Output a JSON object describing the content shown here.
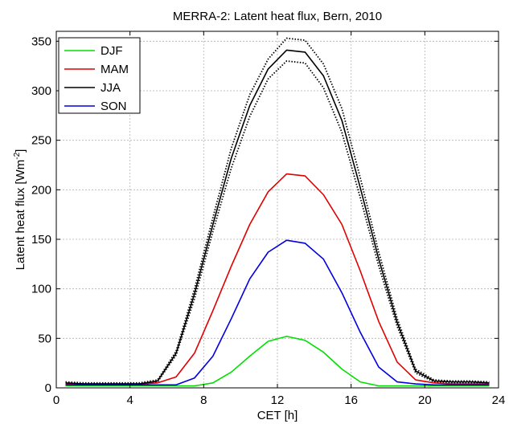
{
  "chart_data": {
    "type": "line",
    "title": "MERRA-2: Latent heat flux, Bern, 2010",
    "xlabel": "CET [h]",
    "ylabel_main": "Latent heat flux [Wm",
    "ylabel_sup": "-2",
    "ylabel_end": "]",
    "xlim": [
      0,
      24
    ],
    "ylim": [
      0,
      360
    ],
    "xticks": [
      "0",
      "4",
      "8",
      "12",
      "16",
      "20",
      "24"
    ],
    "xtick_values": [
      0,
      4,
      8,
      12,
      16,
      20,
      24
    ],
    "yticks": [
      "0",
      "50",
      "100",
      "150",
      "200",
      "250",
      "300",
      "350"
    ],
    "ytick_values": [
      0,
      50,
      100,
      150,
      200,
      250,
      300,
      350
    ],
    "grid": true,
    "legend_position": "top-left",
    "x": [
      0.5,
      1.5,
      2.5,
      3.5,
      4.5,
      5.5,
      6.5,
      7.5,
      8.5,
      9.5,
      10.5,
      11.5,
      12.5,
      13.5,
      14.5,
      15.5,
      16.5,
      17.5,
      18.5,
      19.5,
      20.5,
      21.5,
      22.5,
      23.5
    ],
    "series": [
      {
        "name": "DJF",
        "color": "#00e000",
        "style": "solid",
        "values": [
          2,
          2,
          2,
          2,
          2,
          2,
          2,
          2,
          5,
          16,
          32,
          47,
          52,
          48,
          36,
          19,
          6,
          2,
          2,
          2,
          2,
          2,
          2,
          2
        ]
      },
      {
        "name": "MAM",
        "color": "#e00000",
        "style": "solid",
        "values": [
          4,
          4,
          4,
          4,
          4,
          5,
          11,
          35,
          78,
          123,
          165,
          198,
          216,
          214,
          195,
          165,
          118,
          67,
          26,
          8,
          5,
          4,
          4,
          4
        ]
      },
      {
        "name": "JJA",
        "color": "#000000",
        "style": "solid",
        "values": [
          5,
          4,
          4,
          4,
          4,
          7,
          35,
          95,
          165,
          232,
          285,
          322,
          341,
          339,
          315,
          270,
          202,
          130,
          66,
          17,
          7,
          6,
          6,
          5
        ]
      },
      {
        "name": "SON",
        "color": "#0000e0",
        "style": "solid",
        "values": [
          3,
          3,
          3,
          3,
          3,
          3,
          3,
          10,
          32,
          70,
          110,
          137,
          149,
          146,
          130,
          96,
          56,
          21,
          6,
          4,
          3,
          3,
          3,
          3
        ]
      }
    ],
    "bounds": [
      {
        "of": "JJA",
        "color": "#000000",
        "style": "dotted",
        "values": [
          6,
          5,
          5,
          5,
          5,
          8,
          37,
          100,
          172,
          242,
          296,
          332,
          353,
          351,
          327,
          282,
          212,
          137,
          70,
          19,
          8,
          7,
          7,
          6
        ]
      },
      {
        "of": "JJA",
        "color": "#000000",
        "style": "dotted",
        "values": [
          4,
          3,
          3,
          3,
          3,
          6,
          33,
          90,
          158,
          222,
          274,
          312,
          330,
          328,
          303,
          258,
          192,
          123,
          62,
          15,
          6,
          5,
          5,
          4
        ]
      }
    ]
  }
}
